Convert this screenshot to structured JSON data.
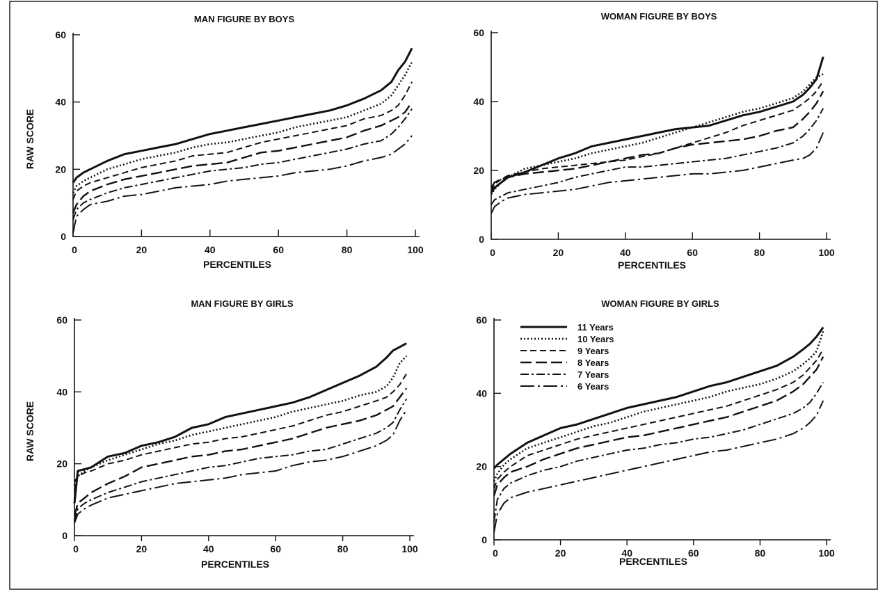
{
  "chart_data": [
    {
      "type": "line",
      "title": "MAN FIGURE BY BOYS",
      "xlabel": "PERCENTILES",
      "ylabel": "RAW SCORE",
      "xlim": [
        0,
        100
      ],
      "ylim": [
        0,
        60
      ],
      "xticks": [
        "0",
        "20",
        "40",
        "60",
        "80",
        "100"
      ],
      "yticks": [
        "0",
        "20",
        "40",
        "60"
      ],
      "x": [
        0,
        1,
        3,
        5,
        10,
        15,
        20,
        25,
        30,
        35,
        40,
        45,
        50,
        55,
        60,
        65,
        70,
        75,
        80,
        85,
        90,
        93,
        95,
        97,
        99
      ],
      "series": [
        {
          "name": "11 Years",
          "values": [
            16,
            17.5,
            19,
            20,
            22.5,
            24.5,
            25.5,
            26.5,
            27.5,
            29,
            30.5,
            31.5,
            32.5,
            33.5,
            34.5,
            35.5,
            36.5,
            37.5,
            39,
            41,
            43.5,
            46,
            49.5,
            52,
            56
          ]
        },
        {
          "name": "10 Years",
          "values": [
            13,
            15,
            16.5,
            17.5,
            20,
            21.5,
            23,
            24,
            25,
            26.5,
            27.5,
            28,
            29,
            30,
            31,
            32.5,
            33.5,
            34.5,
            35.5,
            37.5,
            39.5,
            42,
            45,
            48,
            52
          ]
        },
        {
          "name": "9 Years",
          "values": [
            11,
            13.5,
            15,
            16,
            17.5,
            19,
            20.5,
            21.5,
            22.5,
            24,
            24.5,
            25,
            26.5,
            28,
            29,
            30,
            31,
            32,
            33,
            35,
            36,
            37.5,
            39,
            42,
            46
          ]
        },
        {
          "name": "8 Years",
          "values": [
            7,
            9.5,
            12,
            13.5,
            15.5,
            17,
            18,
            19,
            20,
            21,
            21.5,
            22,
            23.5,
            25,
            25.5,
            26.5,
            27.5,
            28.5,
            29.5,
            31.5,
            33,
            34.5,
            35.5,
            37,
            40
          ]
        },
        {
          "name": "7 Years",
          "values": [
            5,
            8,
            10,
            11,
            13,
            14.5,
            15.5,
            16.5,
            17.5,
            18.5,
            19.5,
            20,
            20.5,
            21.5,
            22,
            23,
            24,
            25,
            26,
            27.5,
            28.5,
            30.5,
            32.5,
            35,
            38
          ]
        },
        {
          "name": "6 Years",
          "values": [
            1,
            6,
            8,
            9.5,
            10.5,
            12,
            12.5,
            13.5,
            14.5,
            15,
            15.5,
            16.5,
            17,
            17.5,
            18,
            19,
            19.5,
            20,
            21,
            22.5,
            23.5,
            24.5,
            26,
            27.5,
            30
          ]
        }
      ]
    },
    {
      "type": "line",
      "title": "WOMAN FIGURE BY BOYS",
      "xlabel": "PERCENTILES",
      "ylabel": "",
      "xlim": [
        0,
        100
      ],
      "ylim": [
        0,
        60
      ],
      "xticks": [
        "0",
        "20",
        "40",
        "60",
        "80",
        "100"
      ],
      "yticks": [
        "0",
        "20",
        "40",
        "60"
      ],
      "x": [
        0,
        1,
        3,
        5,
        10,
        15,
        20,
        25,
        30,
        35,
        40,
        45,
        50,
        55,
        60,
        65,
        70,
        75,
        80,
        85,
        90,
        93,
        95,
        97,
        99
      ],
      "series": [
        {
          "name": "11 Years",
          "values": [
            13.5,
            15,
            16.5,
            18,
            19.5,
            21.5,
            23.5,
            25,
            27,
            28,
            29,
            30,
            31,
            32,
            32.5,
            33,
            34.5,
            36,
            37,
            38.5,
            40,
            42,
            44,
            46.5,
            53
          ]
        },
        {
          "name": "10 Years",
          "values": [
            13,
            14.5,
            16.5,
            18,
            20.5,
            21.5,
            22.5,
            23.5,
            25,
            26,
            27,
            28,
            29.5,
            31,
            32.5,
            34,
            35.5,
            37,
            38,
            39.5,
            41,
            43,
            45,
            47,
            48
          ]
        },
        {
          "name": "9 Years",
          "values": [
            14,
            16,
            17.5,
            18.5,
            19.5,
            20.5,
            21,
            21.5,
            22,
            22.5,
            23,
            24,
            25,
            26.5,
            28,
            29.5,
            31,
            33,
            34.5,
            36,
            37.5,
            39.5,
            41,
            43,
            46
          ]
        },
        {
          "name": "8 Years",
          "values": [
            15,
            16.5,
            17.5,
            18,
            19,
            19.5,
            20,
            20.5,
            21.5,
            22.5,
            23.5,
            24.5,
            25,
            26.5,
            27.5,
            28,
            28.5,
            29,
            30,
            31.5,
            32.5,
            35,
            37,
            39.5,
            43
          ]
        },
        {
          "name": "7 Years",
          "values": [
            10,
            11.5,
            12.5,
            13.5,
            14.5,
            15.5,
            16.5,
            18,
            19,
            20,
            21,
            21,
            21.5,
            22,
            22.5,
            23,
            23.5,
            24.5,
            25.5,
            26.5,
            28,
            30,
            32,
            34.5,
            38
          ]
        },
        {
          "name": "6 Years",
          "values": [
            7.5,
            9.5,
            11,
            12,
            13,
            13.5,
            14,
            14.5,
            15.5,
            16.5,
            17,
            17.5,
            18,
            18.5,
            19,
            19,
            19.5,
            20,
            21,
            22,
            23,
            23.5,
            24.5,
            26.5,
            31
          ]
        }
      ]
    },
    {
      "type": "line",
      "title": "MAN FIGURE BY GIRLS",
      "xlabel": "PERCENTILES",
      "ylabel": "RAW SCORE",
      "xlim": [
        0,
        100
      ],
      "ylim": [
        0,
        60
      ],
      "xticks": [
        "0",
        "20",
        "40",
        "60",
        "80",
        "100"
      ],
      "yticks": [
        "0",
        "20",
        "40",
        "60"
      ],
      "x": [
        0,
        1,
        3,
        5,
        10,
        15,
        20,
        25,
        30,
        35,
        40,
        45,
        50,
        55,
        60,
        65,
        70,
        75,
        80,
        85,
        90,
        93,
        95,
        97,
        99
      ],
      "series": [
        {
          "name": "11 Years",
          "values": [
            9,
            18,
            18.5,
            19,
            22,
            23,
            25,
            26,
            27.5,
            30,
            31,
            33,
            34,
            35,
            36,
            37,
            38.5,
            40.5,
            42.5,
            44.5,
            47,
            49.5,
            51.5,
            52.5,
            53.5
          ]
        },
        {
          "name": "10 Years",
          "values": [
            14,
            16.5,
            18,
            19,
            21,
            22.5,
            24,
            25.5,
            26.5,
            28,
            29,
            30,
            31,
            32,
            33,
            34.5,
            35.5,
            36.5,
            37.5,
            39,
            40,
            41.5,
            44,
            48,
            50
          ]
        },
        {
          "name": "9 Years",
          "values": [
            15,
            16.5,
            17.5,
            18,
            20,
            21,
            22.5,
            23.5,
            24.5,
            25.5,
            26,
            27,
            27.5,
            28.5,
            29.5,
            30.5,
            32,
            33.5,
            34.5,
            36,
            37.5,
            38.5,
            40,
            42,
            45
          ]
        },
        {
          "name": "8 Years",
          "values": [
            5.5,
            9,
            10.5,
            12,
            14.5,
            16.5,
            19,
            20,
            21,
            22,
            22.5,
            23.5,
            24,
            25,
            26,
            27,
            28.5,
            30,
            31,
            32,
            33.5,
            35,
            36,
            38.5,
            41
          ]
        },
        {
          "name": "7 Years",
          "values": [
            4,
            7.5,
            9,
            10,
            12,
            13.5,
            15,
            16,
            17,
            18,
            19,
            19.5,
            20.5,
            21.5,
            22,
            22.5,
            23.5,
            24,
            25.5,
            27,
            28.5,
            30,
            31.5,
            35,
            38
          ]
        },
        {
          "name": "6 Years",
          "values": [
            3.5,
            6,
            7.5,
            8.5,
            10.5,
            11.5,
            12.5,
            13.5,
            14.5,
            15,
            15.5,
            16,
            17,
            17.5,
            18,
            19.5,
            20.5,
            21,
            22,
            23.5,
            25,
            26.5,
            28,
            32,
            35
          ]
        }
      ]
    },
    {
      "type": "line",
      "title": "WOMAN FIGURE BY GIRLS",
      "xlabel": "PERCENTILES",
      "ylabel": "",
      "xlim": [
        0,
        100
      ],
      "ylim": [
        0,
        60
      ],
      "xticks": [
        "0",
        "20",
        "40",
        "60",
        "80",
        "100"
      ],
      "yticks": [
        "0",
        "20",
        "40",
        "60"
      ],
      "legend": "top-left",
      "x": [
        0,
        1,
        3,
        5,
        10,
        15,
        20,
        25,
        30,
        35,
        40,
        45,
        50,
        55,
        60,
        65,
        70,
        75,
        80,
        85,
        90,
        93,
        95,
        97,
        99
      ],
      "series": [
        {
          "name": "11 Years",
          "values": [
            19.5,
            20.5,
            22,
            23.5,
            26.5,
            28.5,
            30.5,
            31.5,
            33,
            34.5,
            36,
            37,
            38,
            39,
            40.5,
            42,
            43,
            44.5,
            46,
            47.5,
            50,
            52,
            53.5,
            55.5,
            58
          ]
        },
        {
          "name": "10 Years",
          "values": [
            16,
            18,
            20.5,
            22,
            25,
            26.5,
            28,
            29.5,
            31,
            32,
            33.5,
            35,
            36,
            37,
            38,
            39,
            40.5,
            41.5,
            42.5,
            44,
            46,
            48,
            49.5,
            51.5,
            57
          ]
        },
        {
          "name": "9 Years",
          "values": [
            14,
            16.5,
            18.5,
            20,
            23,
            24.5,
            26,
            27.5,
            28.5,
            29.5,
            30.5,
            31.5,
            32.5,
            33.5,
            34.5,
            35.5,
            36.5,
            38,
            39.5,
            41,
            43,
            45,
            47,
            49,
            52
          ]
        },
        {
          "name": "8 Years",
          "values": [
            12,
            15,
            17,
            18.5,
            20,
            22,
            23.5,
            25,
            26,
            27,
            28,
            28.5,
            29.5,
            30.5,
            31.5,
            32.5,
            33.5,
            35,
            36.5,
            38,
            40.5,
            42.5,
            44.5,
            46.5,
            50
          ]
        },
        {
          "name": "7 Years",
          "values": [
            5,
            11,
            14,
            15.5,
            17.5,
            19,
            20,
            21.5,
            22.5,
            23.5,
            24.5,
            25,
            26,
            26.5,
            27.5,
            28,
            29,
            30,
            31.5,
            33,
            34.5,
            36,
            37.5,
            40,
            43
          ]
        },
        {
          "name": "6 Years",
          "values": [
            2,
            7,
            10,
            11.5,
            13,
            14,
            15,
            16,
            17,
            18,
            19,
            20,
            21,
            22,
            23,
            24,
            24.5,
            25.5,
            26.5,
            27.5,
            29,
            30.5,
            32,
            34,
            38
          ]
        }
      ]
    }
  ],
  "legend": {
    "entries": [
      "11 Years",
      "10 Years",
      "9 Years",
      "8 Years",
      "7 Years",
      "6 Years"
    ],
    "styles": [
      "solid",
      "dotted",
      "short-dash",
      "long-dash",
      "dash-dot",
      "long-dash-dot"
    ]
  },
  "colors": {
    "ink": "#111111",
    "background": "#ffffff"
  }
}
